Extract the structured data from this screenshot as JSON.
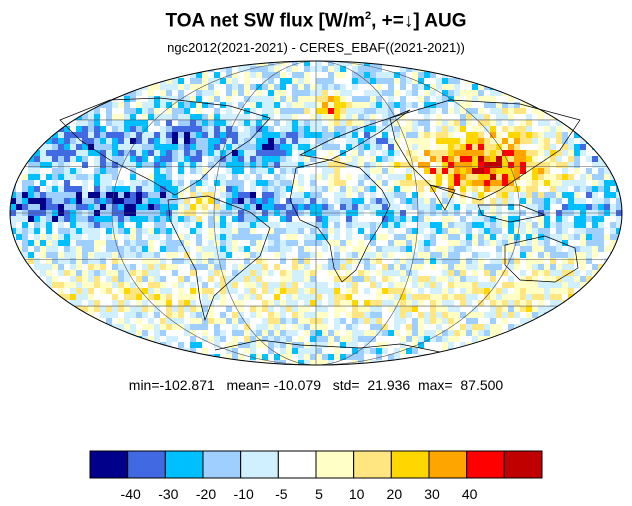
{
  "title": {
    "main": "TOA net SW flux [W/m",
    "sup": "2",
    "rest": ", +=↓]  AUG"
  },
  "subtitle": "ngc2012(2021-2021) - CERES_EBAF((2021-2021))",
  "stats": {
    "min_label": "min=",
    "min": "-102.871",
    "mean_label": "mean=",
    "mean": "-10.079",
    "std_label": "std=",
    "std": "21.936",
    "max_label": "max=",
    "max": "87.500"
  },
  "colorbar": {
    "colors": [
      "#00008b",
      "#4169e1",
      "#00bfff",
      "#9fcfff",
      "#d0efff",
      "#ffffff",
      "#ffffc6",
      "#ffe680",
      "#ffd700",
      "#ffa500",
      "#ff0000",
      "#c00000"
    ],
    "tick_labels": [
      "-40",
      "-30",
      "-20",
      "-10",
      "-5",
      "5",
      "10",
      "20",
      "30",
      "40"
    ]
  },
  "map": {
    "projection": "mollweide",
    "ocean_pattern_colors": [
      "#00008b",
      "#4169e1",
      "#00bfff",
      "#9fcfff",
      "#d0efff",
      "#ffffff",
      "#ffe680",
      "#ffa500",
      "#ff0000"
    ]
  }
}
